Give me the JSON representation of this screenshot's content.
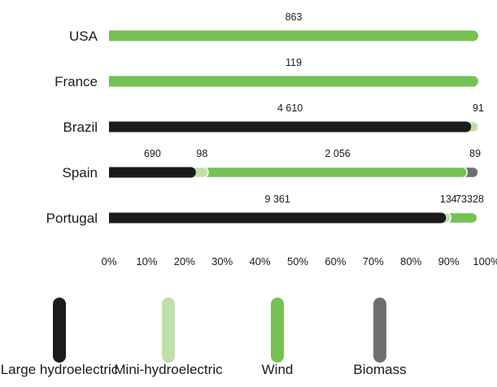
{
  "chart_data": {
    "type": "bar",
    "orientation": "horizontal",
    "stacked": "percent",
    "categories": [
      "USA",
      "France",
      "Brazil",
      "Spain",
      "Portugal"
    ],
    "series": [
      {
        "name": "Large hydroelectric",
        "color": "#1c1a1b",
        "values": [
          0,
          0,
          4610,
          690,
          9361
        ]
      },
      {
        "name": "Mini-hydroelectric",
        "color": "#bfe0a8",
        "values": [
          0,
          0,
          91,
          98,
          134
        ]
      },
      {
        "name": "Wind",
        "color": "#76c154",
        "values": [
          863,
          119,
          0,
          2056,
          733
        ]
      },
      {
        "name": "Biomass",
        "color": "#6f6f6f",
        "values": [
          0,
          0,
          0,
          89,
          28
        ]
      }
    ],
    "value_labels": [
      [
        "863"
      ],
      [
        "119"
      ],
      [
        "4 610",
        "91"
      ],
      [
        "690",
        "98",
        "2 056",
        "89"
      ],
      [
        "9 361",
        "134",
        "733",
        "28"
      ]
    ],
    "xticks": [
      "0%",
      "10%",
      "20%",
      "30%",
      "40%",
      "50%",
      "60%",
      "70%",
      "80%",
      "90%",
      "100%"
    ],
    "xlim": [
      0,
      100
    ],
    "grid": false,
    "legend_position": "bottom"
  }
}
